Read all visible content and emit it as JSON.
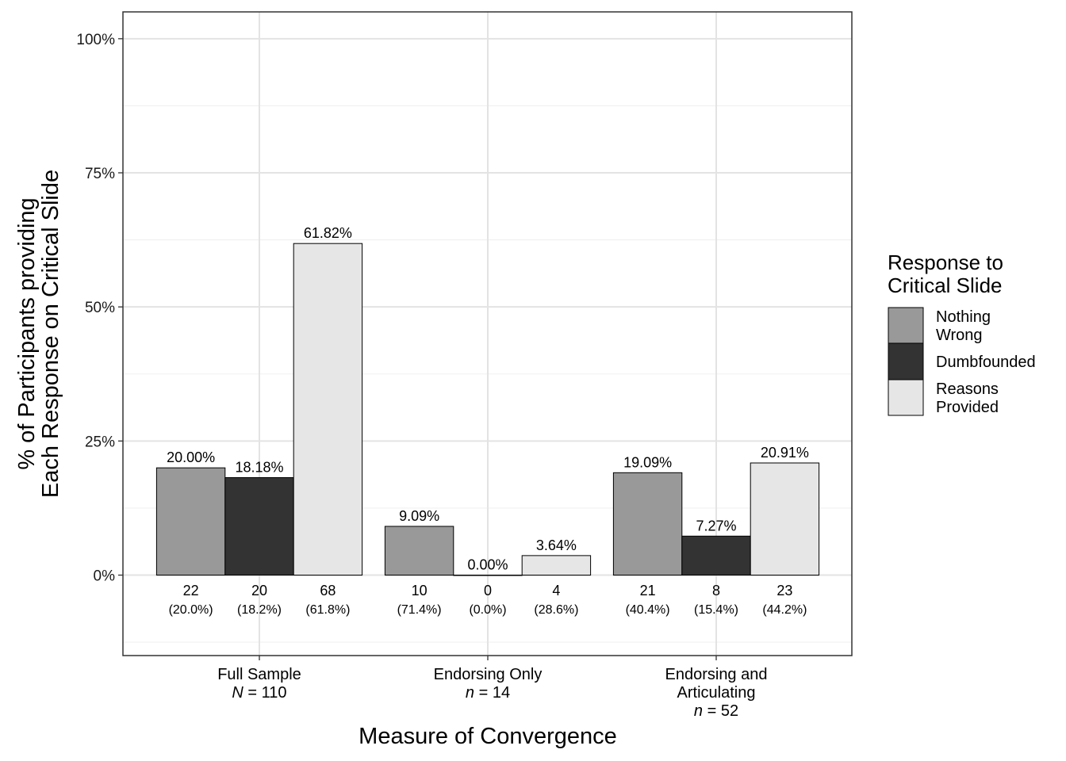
{
  "chart_data": {
    "type": "bar",
    "ylabel_lines": [
      "% of Participants providing",
      "Each Response on Critical Slide"
    ],
    "xlabel": "Measure of Convergence",
    "ylim": [
      -15,
      105
    ],
    "y_ticks": [
      0,
      25,
      50,
      75,
      100
    ],
    "y_tick_labels": [
      "0%",
      "25%",
      "50%",
      "75%",
      "100%"
    ],
    "grid": true,
    "legend": {
      "title_lines": [
        "Response to",
        "Critical Slide"
      ],
      "position": "right",
      "items": [
        {
          "label_lines": [
            "Nothing",
            "Wrong"
          ],
          "color": "#999999"
        },
        {
          "label_lines": [
            "Dumbfounded"
          ],
          "color": "#333333"
        },
        {
          "label_lines": [
            "Reasons",
            "Provided"
          ],
          "color": "#e6e6e6"
        }
      ]
    },
    "series_names": [
      "Nothing Wrong",
      "Dumbfounded",
      "Reasons Provided"
    ],
    "categories": [
      {
        "label_lines": [
          "Full Sample"
        ],
        "n_prefix": "N",
        "n_suffix": " = 110"
      },
      {
        "label_lines": [
          "Endorsing Only"
        ],
        "n_prefix": "n",
        "n_suffix": " = 14"
      },
      {
        "label_lines": [
          "Endorsing and",
          "Articulating"
        ],
        "n_prefix": "n",
        "n_suffix": " = 52"
      }
    ],
    "values": [
      [
        20.0,
        18.18,
        61.82
      ],
      [
        9.09,
        0.0,
        3.64
      ],
      [
        19.09,
        7.27,
        20.91
      ]
    ],
    "value_labels": [
      [
        "20.00%",
        "18.18%",
        "61.82%"
      ],
      [
        "9.09%",
        "0.00%",
        "3.64%"
      ],
      [
        "19.09%",
        "7.27%",
        "20.91%"
      ]
    ],
    "counts": [
      [
        "22",
        "20",
        "68"
      ],
      [
        "10",
        "0",
        "4"
      ],
      [
        "21",
        "8",
        "23"
      ]
    ],
    "count_pcts": [
      [
        "(20.0%)",
        "(18.2%)",
        "(61.8%)"
      ],
      [
        "(71.4%)",
        "(0.0%)",
        "(28.6%)"
      ],
      [
        "(40.4%)",
        "(15.4%)",
        "(44.2%)"
      ]
    ],
    "colors": [
      "#999999",
      "#333333",
      "#e6e6e6"
    ]
  }
}
